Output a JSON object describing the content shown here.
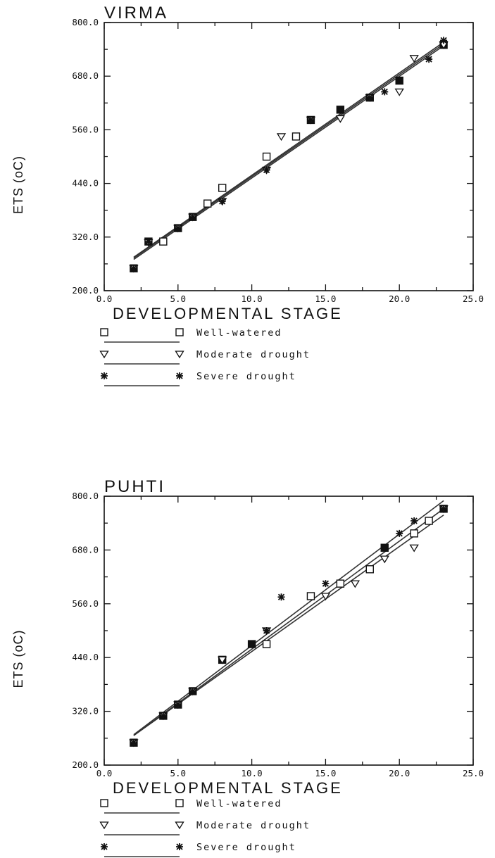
{
  "chart_data": [
    {
      "type": "scatter",
      "title": "VIRMA",
      "xlabel": "DEVELOPMENTAL STAGE",
      "ylabel": "ETS (oC)",
      "xlim": [
        0,
        25
      ],
      "ylim": [
        200,
        800
      ],
      "xticks": [
        "0.0",
        "5.0",
        "10.0",
        "15.0",
        "20.0",
        "25.0"
      ],
      "yticks": [
        "200.0",
        "320.0",
        "440.0",
        "560.0",
        "680.0",
        "800.0"
      ],
      "grid": false,
      "legend": "below-plot",
      "series": [
        {
          "name": "Well-watered",
          "marker": "square",
          "points": [
            [
              2,
              250
            ],
            [
              3,
              310
            ],
            [
              4,
              310
            ],
            [
              5,
              340
            ],
            [
              6,
              365
            ],
            [
              7,
              395
            ],
            [
              8,
              430
            ],
            [
              11,
              500
            ],
            [
              13,
              545
            ],
            [
              14,
              582
            ],
            [
              16,
              605
            ],
            [
              18,
              632
            ],
            [
              20,
              670
            ],
            [
              23,
              750
            ]
          ],
          "fit": [
            [
              2,
              273
            ],
            [
              23,
              752
            ]
          ]
        },
        {
          "name": "Moderate drought",
          "marker": "triangle-down",
          "points": [
            [
              2,
              250
            ],
            [
              3,
              308
            ],
            [
              5,
              340
            ],
            [
              6,
              365
            ],
            [
              8,
              400
            ],
            [
              11,
              470
            ],
            [
              12,
              545
            ],
            [
              14,
              582
            ],
            [
              16,
              585
            ],
            [
              18,
              632
            ],
            [
              20,
              645
            ],
            [
              21,
              720
            ],
            [
              23,
              750
            ]
          ],
          "fit": [
            [
              2,
              270
            ],
            [
              23,
              748
            ]
          ]
        },
        {
          "name": "Severe drought",
          "marker": "asterisk",
          "points": [
            [
              2,
              250
            ],
            [
              3,
              310
            ],
            [
              5,
              340
            ],
            [
              6,
              365
            ],
            [
              8,
              400
            ],
            [
              11,
              470
            ],
            [
              14,
              582
            ],
            [
              16,
              605
            ],
            [
              18,
              632
            ],
            [
              19,
              645
            ],
            [
              20,
              670
            ],
            [
              22,
              718
            ],
            [
              23,
              760
            ]
          ],
          "fit": [
            [
              2,
              275
            ],
            [
              23,
              756
            ]
          ]
        }
      ]
    },
    {
      "type": "scatter",
      "title": "PUHTI",
      "xlabel": "DEVELOPMENTAL STAGE",
      "ylabel": "ETS (oC)",
      "xlim": [
        0,
        25
      ],
      "ylim": [
        200,
        800
      ],
      "xticks": [
        "0.0",
        "5.0",
        "10.0",
        "15.0",
        "20.0",
        "25.0"
      ],
      "yticks": [
        "200.0",
        "320.0",
        "440.0",
        "560.0",
        "680.0",
        "800.0"
      ],
      "grid": false,
      "legend": "below-plot",
      "series": [
        {
          "name": "Well-watered",
          "marker": "square",
          "points": [
            [
              2,
              250
            ],
            [
              4,
              310
            ],
            [
              5,
              335
            ],
            [
              6,
              365
            ],
            [
              8,
              435
            ],
            [
              10,
              470
            ],
            [
              11,
              470
            ],
            [
              14,
              577
            ],
            [
              16,
              605
            ],
            [
              18,
              637
            ],
            [
              19,
              685
            ],
            [
              21,
              717
            ],
            [
              22,
              745
            ],
            [
              23,
              772
            ]
          ],
          "fit": [
            [
              2,
              266
            ],
            [
              23,
              772
            ]
          ]
        },
        {
          "name": "Moderate drought",
          "marker": "triangle-down",
          "points": [
            [
              2,
              250
            ],
            [
              4,
              310
            ],
            [
              5,
              335
            ],
            [
              6,
              365
            ],
            [
              8,
              435
            ],
            [
              11,
              500
            ],
            [
              15,
              577
            ],
            [
              17,
              605
            ],
            [
              19,
              660
            ],
            [
              21,
              685
            ],
            [
              23,
              772
            ]
          ],
          "fit": [
            [
              2,
              266
            ],
            [
              23,
              758
            ]
          ]
        },
        {
          "name": "Severe drought",
          "marker": "asterisk",
          "points": [
            [
              2,
              250
            ],
            [
              4,
              310
            ],
            [
              5,
              335
            ],
            [
              6,
              365
            ],
            [
              10,
              470
            ],
            [
              11,
              500
            ],
            [
              12,
              575
            ],
            [
              15,
              605
            ],
            [
              19,
              685
            ],
            [
              20,
              717
            ],
            [
              21,
              745
            ],
            [
              23,
              772
            ]
          ],
          "fit": [
            [
              2,
              268
            ],
            [
              23,
              790
            ]
          ]
        }
      ]
    }
  ]
}
